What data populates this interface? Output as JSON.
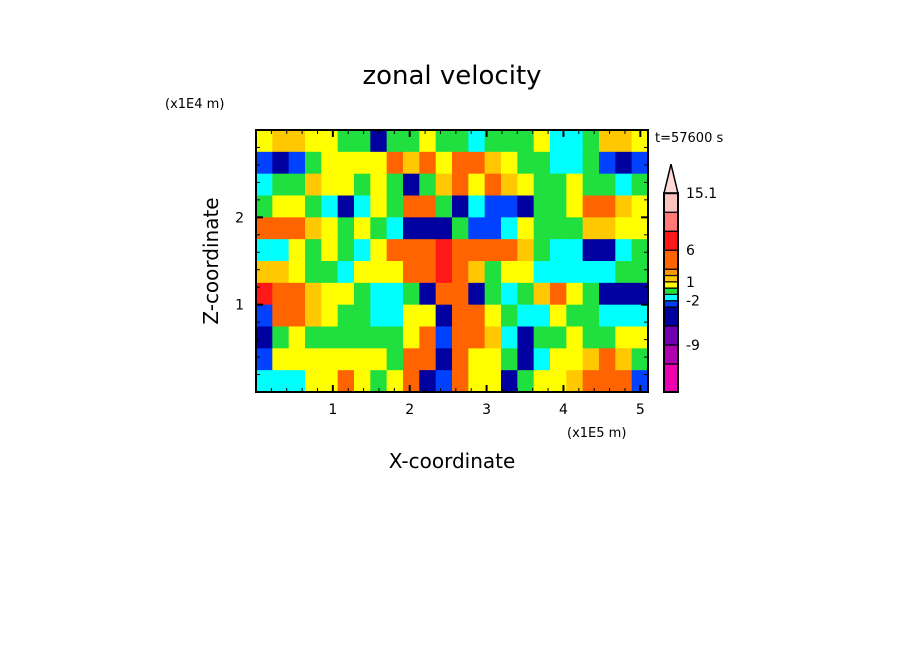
{
  "chart_data": {
    "type": "heatmap",
    "title": "zonal velocity",
    "xlabel": "X-coordinate",
    "ylabel": "Z-coordinate",
    "x_scale_label": "(x1E5 m)",
    "y_scale_label": "(x1E4 m)",
    "time_label": "t=57600 s",
    "xlim": [
      0,
      5.1
    ],
    "ylim": [
      0,
      3.0
    ],
    "x_ticks": [
      "1",
      "2",
      "3",
      "4",
      "5"
    ],
    "y_ticks": [
      "1",
      "2"
    ],
    "colorbar_labels": [
      {
        "value": 15.1,
        "text": "15.1"
      },
      {
        "value": 6,
        "text": "6"
      },
      {
        "value": 1,
        "text": "1"
      },
      {
        "value": -2,
        "text": "-2"
      },
      {
        "value": -9,
        "text": "-9"
      }
    ],
    "levels": [
      -12,
      -9,
      -6,
      -3,
      -2,
      -1,
      0,
      1,
      2,
      3,
      6,
      9,
      12,
      15.1
    ],
    "colors": [
      "#f000b0",
      "#b000b0",
      "#7000b0",
      "#0000a0",
      "#0040ff",
      "#00ffff",
      "#20e040",
      "#ffff00",
      "#ffc800",
      "#ff9600",
      "#ff6400",
      "#ff1818",
      "#ff7878",
      "#ffc0c0",
      "#ffd8d8"
    ],
    "grid_note_rows_top_to_bottom": true,
    "z": [
      [
        0.5,
        1.5,
        1.5,
        0.5,
        0.5,
        -0.5,
        -0.5,
        -4.5,
        -0.5,
        -0.5,
        0.5,
        -0.5,
        -0.5,
        -1.5,
        -0.5,
        -0.5,
        -0.5,
        0.5,
        -1.5,
        -1.5,
        -0.5,
        1.5,
        1.5,
        0.5
      ],
      [
        -2.5,
        -4.5,
        -2.5,
        -0.5,
        0.5,
        0.5,
        0.5,
        0.5,
        4,
        1.5,
        4,
        0.5,
        4,
        4,
        1.5,
        0.5,
        -0.5,
        -0.5,
        -1.5,
        -1.5,
        -0.5,
        -2.5,
        -4.5,
        -2.5
      ],
      [
        -1.5,
        -0.5,
        -0.5,
        1.5,
        0.5,
        0.5,
        -0.5,
        0.5,
        -0.5,
        -4.5,
        -0.5,
        1.5,
        4,
        0.5,
        4,
        1.5,
        0.5,
        -0.5,
        -0.5,
        0.5,
        -0.5,
        -0.5,
        -1.5,
        -0.5
      ],
      [
        -0.5,
        0.5,
        0.5,
        -0.5,
        -1.5,
        -4.5,
        -1.5,
        0.5,
        -0.5,
        4,
        4,
        -0.5,
        -4.5,
        -1.5,
        -2.5,
        -2.5,
        -4.5,
        -0.5,
        -0.5,
        0.5,
        4,
        4,
        1.5,
        0.5
      ],
      [
        4,
        4,
        4,
        1.5,
        0.5,
        -0.5,
        0.5,
        -0.5,
        -1.5,
        -4.5,
        -4.5,
        -4.5,
        -0.5,
        -2.5,
        -2.5,
        -1.5,
        0.5,
        -0.5,
        -0.5,
        -0.5,
        1.5,
        1.5,
        0.5,
        0.5
      ],
      [
        -1.5,
        -1.5,
        0.5,
        -0.5,
        0.5,
        -0.5,
        -1.5,
        0.5,
        4,
        4,
        4,
        7,
        4,
        4,
        4,
        4,
        1.5,
        -0.5,
        -1.5,
        -1.5,
        -4.5,
        -4.5,
        -1.5,
        -0.5
      ],
      [
        1.5,
        1.5,
        0.5,
        -0.5,
        -0.5,
        -1.5,
        0.5,
        0.5,
        0.5,
        4,
        4,
        7,
        4,
        1.5,
        -0.5,
        0.5,
        0.5,
        -1.5,
        -1.5,
        -1.5,
        -1.5,
        -1.5,
        -0.5,
        -0.5
      ],
      [
        7,
        4,
        4,
        1.5,
        0.5,
        0.5,
        -0.5,
        -1.5,
        -1.5,
        -0.5,
        -4.5,
        4,
        4,
        -4.5,
        -0.5,
        -1.5,
        -0.5,
        1.5,
        4,
        0.5,
        -0.5,
        -4.5,
        -4.5,
        -4.5
      ],
      [
        -2.5,
        4,
        4,
        1.5,
        0.5,
        -0.5,
        -0.5,
        -1.5,
        -1.5,
        0.5,
        0.5,
        -4.5,
        4,
        4,
        0.5,
        -0.5,
        -1.5,
        -1.5,
        0.5,
        -0.5,
        -0.5,
        -1.5,
        -1.5,
        -1.5
      ],
      [
        -4.5,
        -0.5,
        0.5,
        -0.5,
        -0.5,
        -0.5,
        -0.5,
        -0.5,
        -0.5,
        0.5,
        4,
        -2.5,
        4,
        4,
        1.5,
        -1.5,
        -4.5,
        -0.5,
        -0.5,
        0.5,
        -0.5,
        -0.5,
        0.5,
        0.5
      ],
      [
        -2.5,
        0.5,
        0.5,
        0.5,
        0.5,
        0.5,
        0.5,
        0.5,
        -0.5,
        4,
        4,
        -4.5,
        4,
        0.5,
        0.5,
        -0.5,
        -4.5,
        -1.5,
        0.5,
        0.5,
        1.5,
        4,
        1.5,
        -0.5
      ],
      [
        -1.5,
        -1.5,
        -1.5,
        0.5,
        0.5,
        4,
        0.5,
        -0.5,
        0.5,
        4,
        -4.5,
        -2.5,
        4,
        0.5,
        0.5,
        -4.5,
        -0.5,
        0.5,
        0.5,
        1.5,
        4,
        4,
        4,
        -2.5
      ]
    ]
  }
}
